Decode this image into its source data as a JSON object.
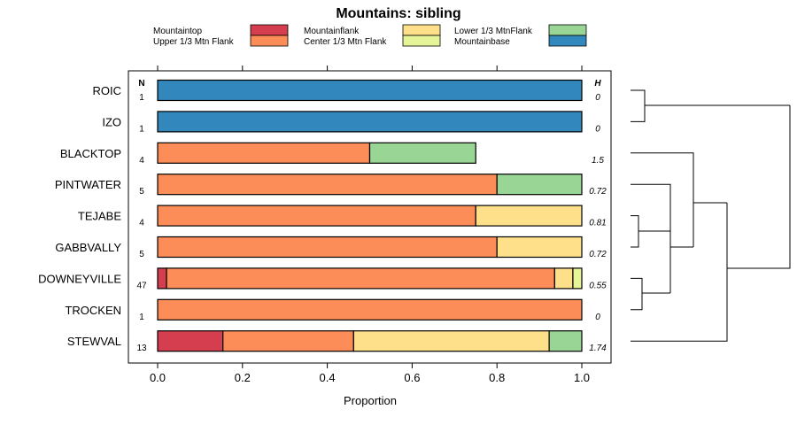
{
  "chart_data": {
    "type": "bar",
    "orientation": "horizontal",
    "stacked": true,
    "title": "Mountains: sibling",
    "xlabel": "Proportion",
    "ylabel": "",
    "xlim": [
      0,
      1
    ],
    "xticks": [
      "0.0",
      "0.2",
      "0.4",
      "0.6",
      "0.8",
      "1.0"
    ],
    "n_header": "N",
    "h_header": "H",
    "categories": [
      "ROIC",
      "IZO",
      "BLACKTOP",
      "PINTWATER",
      "TEJABE",
      "GABBVALLY",
      "DOWNEYVILLE",
      "TROCKEN",
      "STEWVAL"
    ],
    "n": [
      "1",
      "1",
      "4",
      "5",
      "4",
      "5",
      "47",
      "1",
      "13"
    ],
    "h": [
      "0",
      "0",
      "1.5",
      "0.72",
      "0.81",
      "0.72",
      "0.55",
      "0",
      "1.74"
    ],
    "series": [
      {
        "name": "Mountaintop",
        "color": "#d53e4f",
        "values": [
          0,
          0,
          0,
          0,
          0,
          0,
          0.021,
          0,
          0.154
        ]
      },
      {
        "name": "Upper 1/3 Mtn Flank",
        "color": "#fc8d59",
        "values": [
          0,
          0,
          0.5,
          0.8,
          0.75,
          0.8,
          0.915,
          1,
          0.308
        ]
      },
      {
        "name": "Mountainflank",
        "color": "#fee08b",
        "values": [
          0,
          0,
          0,
          0,
          0.25,
          0.2,
          0.043,
          0,
          0.461
        ]
      },
      {
        "name": "Center 1/3 Mtn Flank",
        "color": "#e6f598",
        "values": [
          0,
          0,
          0,
          0,
          0,
          0,
          0.021,
          0,
          0
        ]
      },
      {
        "name": "Lower 1/3 MtnFlank",
        "color": "#99d594",
        "values": [
          0,
          0,
          0.25,
          0.2,
          0,
          0,
          0,
          0,
          0.077
        ]
      },
      {
        "name": "Mountainbase",
        "color": "#3288bd",
        "values": [
          1,
          1,
          0,
          0,
          0,
          0,
          0,
          0,
          0
        ]
      }
    ],
    "legend_position": "top"
  }
}
